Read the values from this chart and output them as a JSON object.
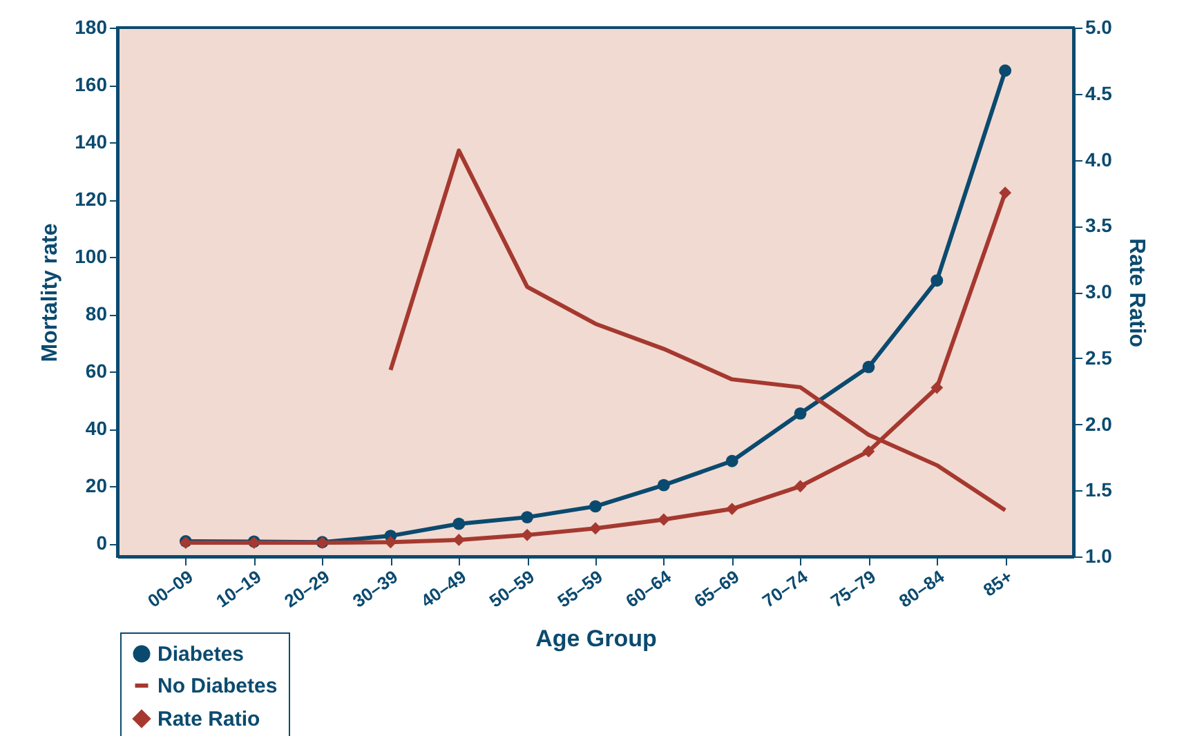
{
  "chart_data": {
    "type": "line",
    "xlabel": "Age Group",
    "ylabel": "Mortality rate",
    "y2label": "Rate Ratio",
    "categories": [
      "00–09",
      "10–19",
      "20–29",
      "30–39",
      "40–49",
      "50–59",
      "55–59",
      "60–64",
      "65–69",
      "70–74",
      "75–79",
      "80–84",
      "85+"
    ],
    "series": [
      {
        "name": "Diabetes",
        "color": "#0b4a6f",
        "marker": "circle",
        "values": [
          0.8,
          0.7,
          0.5,
          2.7,
          6.9,
          9.2,
          13,
          20.4,
          28.8,
          45.4,
          61.6,
          91.8,
          165
        ]
      },
      {
        "name": "No Diabetes",
        "color": "#a5392f",
        "axis": "y2",
        "values": [
          null,
          null,
          null,
          2.41,
          4.07,
          3.04,
          2.76,
          2.57,
          2.34,
          2.28,
          1.92,
          1.69,
          1.35
        ]
      },
      {
        "name": "Rate Ratio",
        "color": "#a5392f",
        "marker": "diamond",
        "values": [
          0.3,
          0.3,
          0.3,
          0.5,
          1.3,
          3,
          5.3,
          8.4,
          12.1,
          20,
          32.2,
          54.4,
          122.4
        ]
      }
    ],
    "ylim": [
      -4.5,
      180
    ],
    "yticks": [
      0,
      20,
      40,
      60,
      80,
      100,
      120,
      140,
      160,
      180
    ],
    "y2lim": [
      1,
      5
    ],
    "y2ticks": [
      {
        "value": 1,
        "label": "1.0"
      },
      {
        "value": 1.5,
        "label": "1.5"
      },
      {
        "value": 2,
        "label": "2.0"
      },
      {
        "value": 2.5,
        "label": "2.5"
      },
      {
        "value": 3,
        "label": "3.0"
      },
      {
        "value": 3.5,
        "label": "3.5"
      },
      {
        "value": 4,
        "label": "4.0"
      },
      {
        "value": 4.5,
        "label": "4.5"
      },
      {
        "value": 5,
        "label": "5.0"
      }
    ],
    "grid": false,
    "legend": "bottom left"
  }
}
